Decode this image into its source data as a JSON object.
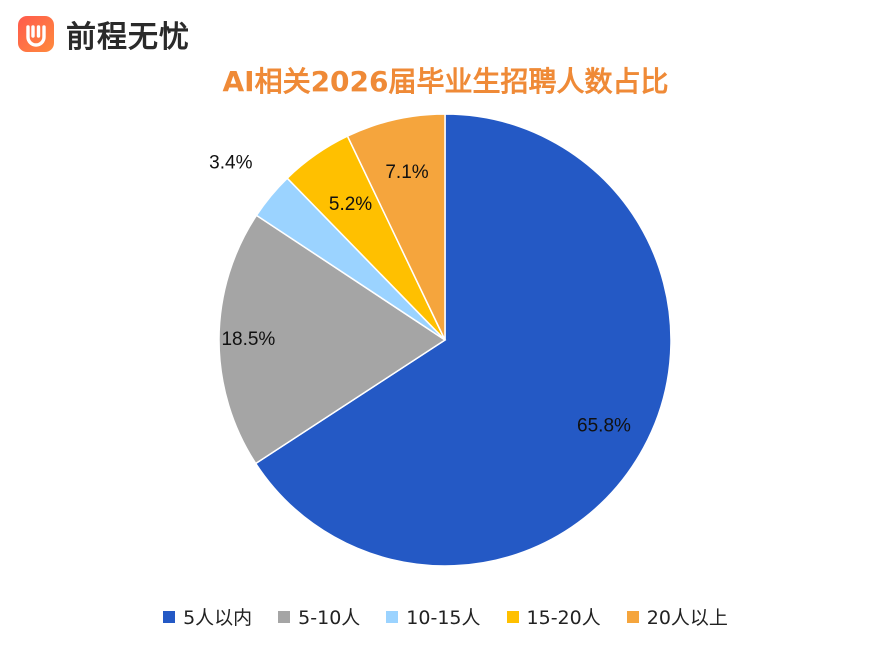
{
  "brand": {
    "name": "前程无忧",
    "logo_icon": "hand-heart-logo-icon"
  },
  "chart_data": {
    "type": "pie",
    "title": "AI相关2026届毕业生招聘人数占比",
    "categories": [
      "5人以内",
      "5-10人",
      "10-15人",
      "15-20人",
      "20人以上"
    ],
    "values": [
      65.8,
      18.5,
      3.4,
      5.2,
      7.1
    ],
    "value_labels": [
      "65.8%",
      "18.5%",
      "3.4%",
      "5.2%",
      "7.1%"
    ],
    "colors": [
      "#2459c5",
      "#a5a5a5",
      "#9bd3ff",
      "#ffc000",
      "#f5a53d"
    ],
    "unit": "%",
    "start_angle": "12 o'clock",
    "direction": "clockwise",
    "legend_position": "bottom"
  }
}
